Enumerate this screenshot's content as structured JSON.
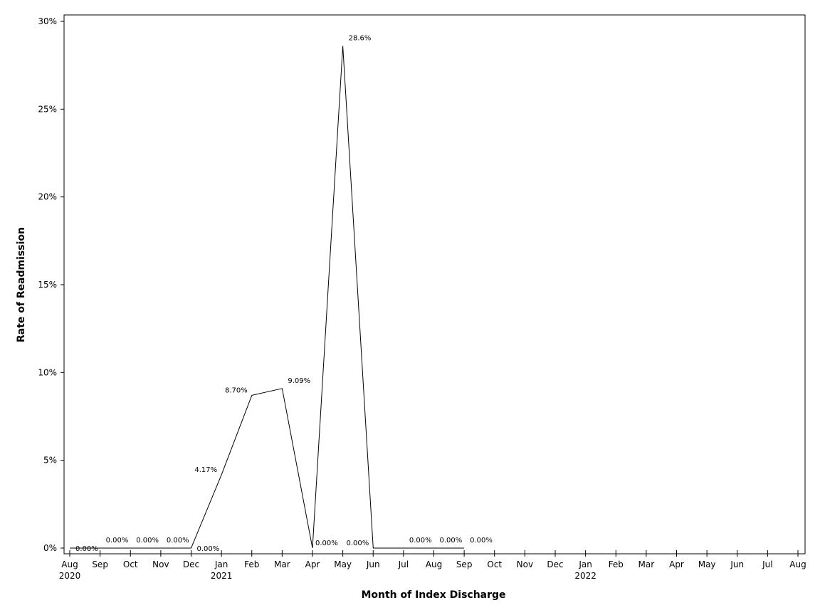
{
  "chart_data": {
    "type": "line",
    "xlabel": "Month of Index Discharge",
    "ylabel": "Rate of Readmission",
    "x": [
      "2020-08",
      "2020-09",
      "2020-10",
      "2020-11",
      "2020-12",
      "2021-01",
      "2021-02",
      "2021-03",
      "2021-04",
      "2021-05",
      "2021-06",
      "2021-07",
      "2021-08",
      "2021-09"
    ],
    "values": [
      0,
      0,
      0,
      0,
      0,
      4.17,
      8.7,
      9.09,
      0,
      28.6,
      0,
      0,
      0,
      0
    ],
    "data_labels": [
      "0.00%",
      "0.00%",
      "0.00%",
      "0.00%",
      "0.00%",
      "4.17%",
      "8.70%",
      "9.09%",
      "0.00%",
      "28.6%",
      "0.00%",
      "0.00%",
      "0.00%",
      "0.00%"
    ],
    "ylim": [
      0,
      30
    ],
    "y_ticks": [
      0,
      5,
      10,
      15,
      20,
      25,
      30
    ],
    "y_tick_labels": [
      "0%",
      "5%",
      "10%",
      "15%",
      "20%",
      "25%",
      "30%"
    ],
    "x_ticks": [
      "Aug",
      "Sep",
      "Oct",
      "Nov",
      "Dec",
      "Jan",
      "Feb",
      "Mar",
      "Apr",
      "May",
      "Jun",
      "Jul",
      "Aug",
      "Sep",
      "Oct",
      "Nov",
      "Dec",
      "Jan",
      "Feb",
      "Mar",
      "Apr",
      "May",
      "Jun",
      "Jul",
      "Aug"
    ],
    "x_year_labels": [
      {
        "tick": 0,
        "label": "2020"
      },
      {
        "tick": 5,
        "label": "2021"
      },
      {
        "tick": 17,
        "label": "2022"
      }
    ],
    "xlim": [
      "2020-08",
      "2022-08"
    ],
    "grid": false,
    "legend": "none"
  }
}
